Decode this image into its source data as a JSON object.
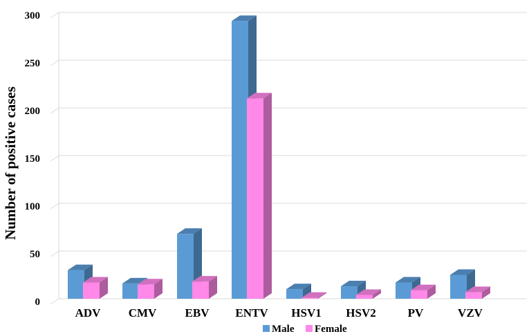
{
  "chart_data": {
    "type": "bar",
    "style": "3d-clustered-column",
    "categories": [
      "ADV",
      "CMV",
      "EBV",
      "ENTV",
      "HSV1",
      "HSV2",
      "PV",
      "VZV"
    ],
    "series": [
      {
        "name": "Male",
        "color": "#5b9bd5",
        "values": [
          30,
          16,
          68,
          291,
          10,
          13,
          17,
          25
        ]
      },
      {
        "name": "Female",
        "color": "#ff88e8",
        "values": [
          17,
          15,
          18,
          210,
          1,
          4,
          9,
          7
        ]
      }
    ],
    "ylabel": "Number of positive cases",
    "xlabel": "",
    "ylim": [
      0,
      300
    ],
    "yticks": [
      0,
      50,
      100,
      150,
      200,
      250,
      300
    ],
    "grid": true,
    "legend": "bottom"
  }
}
